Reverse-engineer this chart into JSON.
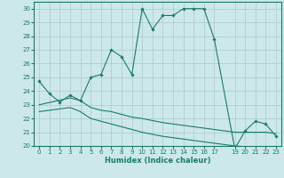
{
  "xlabel": "Humidex (Indice chaleur)",
  "bg_color": "#cce8e8",
  "grid_color": "#aacccc",
  "line_color": "#1a7a6e",
  "xlim": [
    -0.5,
    23.5
  ],
  "ylim": [
    20,
    30.5
  ],
  "xticks": [
    0,
    1,
    2,
    3,
    4,
    5,
    6,
    7,
    8,
    9,
    10,
    11,
    12,
    13,
    14,
    15,
    16,
    17,
    19,
    20,
    21,
    22,
    23
  ],
  "yticks": [
    20,
    21,
    22,
    23,
    24,
    25,
    26,
    27,
    28,
    29,
    30
  ],
  "series1_x": [
    0,
    1,
    2,
    3,
    4,
    5,
    6,
    7,
    8,
    9,
    10,
    11,
    12,
    13,
    14,
    15,
    16,
    17,
    19,
    20,
    21,
    22,
    23
  ],
  "series1_y": [
    24.7,
    23.8,
    23.2,
    23.7,
    23.3,
    25.0,
    25.2,
    27.0,
    26.5,
    25.2,
    30.0,
    28.5,
    29.5,
    29.5,
    30.0,
    30.0,
    30.0,
    27.8,
    19.8,
    21.1,
    21.8,
    21.6,
    20.7
  ],
  "series2_x": [
    0,
    3,
    4,
    5,
    6,
    7,
    8,
    9,
    10,
    11,
    12,
    13,
    14,
    15,
    16,
    17,
    19,
    20,
    21,
    22,
    23
  ],
  "series2_y": [
    23.0,
    23.5,
    23.3,
    22.8,
    22.6,
    22.5,
    22.3,
    22.1,
    22.0,
    21.85,
    21.7,
    21.6,
    21.5,
    21.4,
    21.3,
    21.2,
    21.0,
    21.0,
    21.0,
    21.0,
    20.9
  ],
  "series3_x": [
    0,
    3,
    4,
    5,
    6,
    7,
    8,
    9,
    10,
    11,
    12,
    13,
    14,
    15,
    16,
    17,
    19,
    20,
    21,
    22,
    23
  ],
  "series3_y": [
    22.5,
    22.8,
    22.5,
    22.0,
    21.8,
    21.6,
    21.4,
    21.2,
    21.0,
    20.85,
    20.7,
    20.6,
    20.5,
    20.4,
    20.3,
    20.2,
    20.0,
    19.95,
    19.9,
    19.85,
    19.8
  ],
  "xlabel_fontsize": 6.0,
  "tick_fontsize": 5.0
}
